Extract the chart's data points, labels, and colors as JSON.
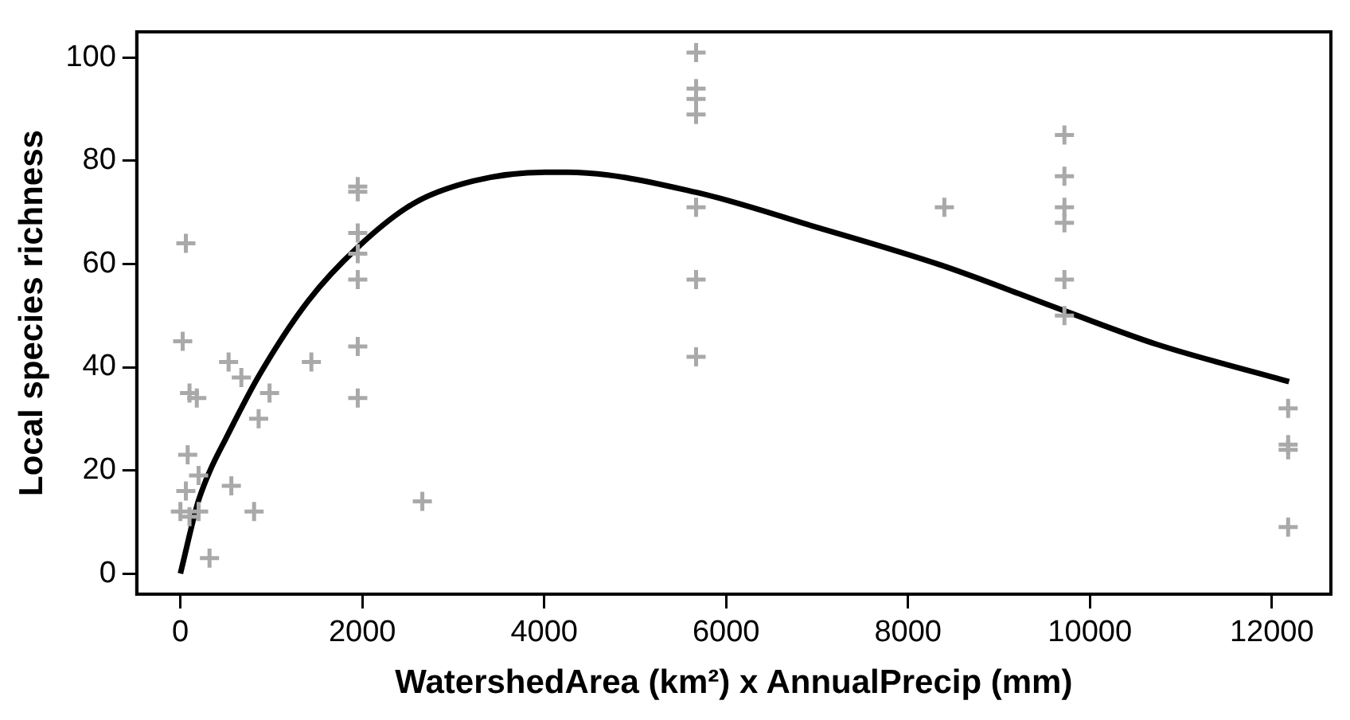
{
  "chart_data": {
    "type": "scatter",
    "xlabel": "WatershedArea (km²) x AnnualPrecip (mm)",
    "ylabel": "Local species richness",
    "xlim": [
      -480,
      12650
    ],
    "ylim": [
      -4,
      105
    ],
    "xticks": [
      0,
      2000,
      4000,
      6000,
      8000,
      10000,
      12000
    ],
    "yticks": [
      0,
      20,
      40,
      60,
      80,
      100
    ],
    "grid": false,
    "legend": false,
    "series": [
      {
        "marker": "cross",
        "color": "#a9a9a9",
        "x": [
          60,
          25,
          100,
          180,
          80,
          200,
          0,
          50,
          100,
          150,
          200,
          100,
          60,
          320,
          560,
          810,
          530,
          670,
          980,
          860,
          1440,
          2660,
          1950,
          1950,
          1950,
          1950,
          1950,
          1950,
          1950,
          5670,
          5670,
          5670,
          5670,
          5670,
          5670,
          5670,
          8400,
          9720,
          9720,
          9720,
          9720,
          9720,
          9720,
          12180,
          12180,
          12180,
          12180
        ],
        "values": [
          64,
          45,
          35,
          34,
          23,
          19,
          12,
          null,
          null,
          null,
          12,
          11,
          16,
          3,
          17,
          12,
          41,
          38,
          35,
          30,
          41,
          14,
          75,
          74,
          66,
          62,
          57,
          44,
          34,
          101,
          94,
          92,
          89,
          71,
          57,
          42,
          71,
          85,
          77,
          71,
          68,
          57,
          50,
          32,
          25,
          24,
          9
        ]
      },
      {
        "type": "line",
        "marker": "none",
        "line_style": "solid",
        "color": "#000000",
        "x": [
          0,
          195,
          327,
          498,
          862,
          1403,
          1953,
          2560,
          3224,
          4012,
          4255,
          5667,
          6982,
          8376,
          9722,
          10740,
          12190
        ],
        "values": [
          0,
          13.9,
          20,
          26.1,
          38.3,
          52.8,
          63.3,
          71.7,
          76.1,
          77.8,
          77.8,
          73.9,
          67.2,
          59.7,
          50.9,
          44.4,
          37.2
        ]
      }
    ]
  }
}
